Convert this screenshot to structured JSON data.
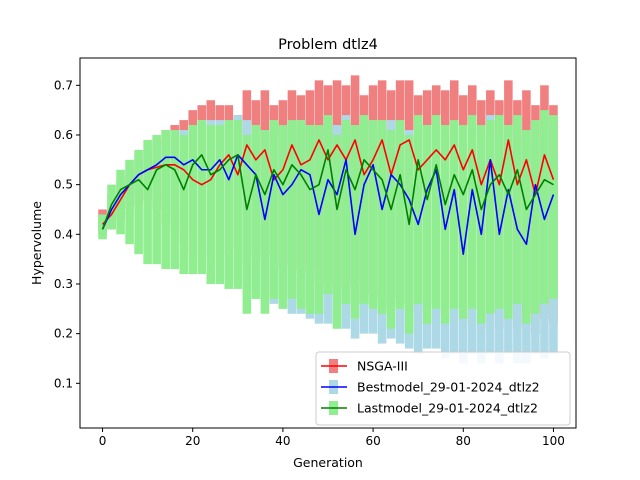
{
  "chart_data": {
    "type": "line",
    "title": "Problem dtlz4",
    "xlabel": "Generation",
    "ylabel": "Hypervolume",
    "xlim": [
      -5,
      105
    ],
    "ylim": [
      0.01,
      0.755
    ],
    "xticks": [
      0,
      20,
      40,
      60,
      80,
      100
    ],
    "yticks": [
      0.1,
      0.2,
      0.3,
      0.4,
      0.5,
      0.6,
      0.7
    ],
    "grid": false,
    "legend": "lower-right",
    "series": [
      {
        "name": "NSGA-III",
        "color": "#ff0000",
        "band_color": "#f08080",
        "x": [
          0,
          2,
          4,
          6,
          8,
          10,
          12,
          14,
          16,
          18,
          20,
          22,
          24,
          26,
          28,
          30,
          32,
          34,
          36,
          38,
          40,
          42,
          44,
          46,
          48,
          50,
          52,
          54,
          56,
          58,
          60,
          62,
          64,
          66,
          68,
          70,
          72,
          74,
          76,
          78,
          80,
          82,
          84,
          86,
          88,
          90,
          92,
          94,
          96,
          98,
          100
        ],
        "mean": [
          0.42,
          0.44,
          0.47,
          0.5,
          0.52,
          0.53,
          0.535,
          0.54,
          0.54,
          0.53,
          0.51,
          0.5,
          0.51,
          0.54,
          0.56,
          0.52,
          0.58,
          0.55,
          0.57,
          0.51,
          0.53,
          0.58,
          0.54,
          0.55,
          0.59,
          0.55,
          0.58,
          0.55,
          0.59,
          0.52,
          0.55,
          0.59,
          0.52,
          0.58,
          0.59,
          0.53,
          0.55,
          0.57,
          0.55,
          0.58,
          0.53,
          0.57,
          0.5,
          0.55,
          0.5,
          0.59,
          0.5,
          0.55,
          0.48,
          0.56,
          0.51
        ],
        "low": [
          0.4,
          0.41,
          0.43,
          0.45,
          0.46,
          0.47,
          0.45,
          0.42,
          0.4,
          0.38,
          0.36,
          0.34,
          0.35,
          0.36,
          0.37,
          0.34,
          0.36,
          0.35,
          0.36,
          0.33,
          0.34,
          0.33,
          0.32,
          0.33,
          0.3,
          0.28,
          0.3,
          0.29,
          0.3,
          0.26,
          0.28,
          0.27,
          0.25,
          0.27,
          0.26,
          0.24,
          0.25,
          0.26,
          0.24,
          0.25,
          0.22,
          0.25,
          0.21,
          0.24,
          0.21,
          0.26,
          0.21,
          0.24,
          0.2,
          0.23,
          0.22
        ],
        "high": [
          0.45,
          0.48,
          0.5,
          0.53,
          0.55,
          0.57,
          0.59,
          0.61,
          0.62,
          0.63,
          0.65,
          0.66,
          0.67,
          0.66,
          0.66,
          0.64,
          0.69,
          0.67,
          0.69,
          0.66,
          0.67,
          0.69,
          0.68,
          0.69,
          0.71,
          0.7,
          0.71,
          0.7,
          0.72,
          0.68,
          0.7,
          0.71,
          0.69,
          0.71,
          0.71,
          0.68,
          0.69,
          0.7,
          0.69,
          0.71,
          0.68,
          0.7,
          0.67,
          0.69,
          0.67,
          0.71,
          0.67,
          0.69,
          0.66,
          0.7,
          0.66
        ]
      },
      {
        "name": "Bestmodel_29-01-2024_dtlz2",
        "color": "#0000ff",
        "band_color": "#add8e6",
        "x": [
          0,
          2,
          4,
          6,
          8,
          10,
          12,
          14,
          16,
          18,
          20,
          22,
          24,
          26,
          28,
          30,
          32,
          34,
          36,
          38,
          40,
          42,
          44,
          46,
          48,
          50,
          52,
          54,
          56,
          58,
          60,
          62,
          64,
          66,
          68,
          70,
          72,
          74,
          76,
          78,
          80,
          82,
          84,
          86,
          88,
          90,
          92,
          94,
          96,
          98,
          100
        ],
        "mean": [
          0.41,
          0.45,
          0.48,
          0.5,
          0.52,
          0.53,
          0.54,
          0.555,
          0.555,
          0.54,
          0.55,
          0.53,
          0.53,
          0.55,
          0.51,
          0.56,
          0.54,
          0.52,
          0.43,
          0.52,
          0.48,
          0.5,
          0.53,
          0.52,
          0.44,
          0.51,
          0.48,
          0.55,
          0.4,
          0.5,
          0.54,
          0.45,
          0.52,
          0.5,
          0.47,
          0.42,
          0.49,
          0.53,
          0.41,
          0.49,
          0.36,
          0.49,
          0.4,
          0.55,
          0.4,
          0.49,
          0.41,
          0.38,
          0.5,
          0.43,
          0.48
        ],
        "low": [
          0.4,
          0.43,
          0.45,
          0.47,
          0.48,
          0.49,
          0.48,
          0.46,
          0.44,
          0.42,
          0.4,
          0.36,
          0.33,
          0.31,
          0.3,
          0.3,
          0.28,
          0.27,
          0.26,
          0.26,
          0.25,
          0.24,
          0.24,
          0.23,
          0.22,
          0.22,
          0.21,
          0.21,
          0.19,
          0.2,
          0.2,
          0.18,
          0.19,
          0.18,
          0.17,
          0.16,
          0.17,
          0.17,
          0.15,
          0.16,
          0.14,
          0.16,
          0.14,
          0.16,
          0.14,
          0.16,
          0.14,
          0.14,
          0.16,
          0.15,
          0.16
        ],
        "high": [
          0.43,
          0.48,
          0.51,
          0.54,
          0.56,
          0.57,
          0.58,
          0.59,
          0.6,
          0.61,
          0.62,
          0.63,
          0.63,
          0.63,
          0.62,
          0.64,
          0.63,
          0.62,
          0.6,
          0.62,
          0.61,
          0.62,
          0.63,
          0.62,
          0.6,
          0.63,
          0.62,
          0.64,
          0.6,
          0.62,
          0.63,
          0.61,
          0.63,
          0.62,
          0.61,
          0.6,
          0.62,
          0.63,
          0.59,
          0.62,
          0.58,
          0.62,
          0.6,
          0.64,
          0.6,
          0.62,
          0.6,
          0.59,
          0.62,
          0.6,
          0.62
        ]
      },
      {
        "name": "Lastmodel_29-01-2024_dtlz2",
        "color": "#008000",
        "band_color": "#90ee90",
        "x": [
          0,
          2,
          4,
          6,
          8,
          10,
          12,
          14,
          16,
          18,
          20,
          22,
          24,
          26,
          28,
          30,
          32,
          34,
          36,
          38,
          40,
          42,
          44,
          46,
          48,
          50,
          52,
          54,
          56,
          58,
          60,
          62,
          64,
          66,
          68,
          70,
          72,
          74,
          76,
          78,
          80,
          82,
          84,
          86,
          88,
          90,
          92,
          94,
          96,
          98,
          100
        ],
        "mean": [
          0.41,
          0.46,
          0.49,
          0.5,
          0.51,
          0.49,
          0.53,
          0.54,
          0.53,
          0.49,
          0.54,
          0.56,
          0.52,
          0.53,
          0.55,
          0.56,
          0.45,
          0.52,
          0.48,
          0.53,
          0.5,
          0.54,
          0.52,
          0.49,
          0.5,
          0.57,
          0.45,
          0.53,
          0.49,
          0.55,
          0.53,
          0.51,
          0.45,
          0.52,
          0.42,
          0.55,
          0.47,
          0.54,
          0.46,
          0.52,
          0.48,
          0.53,
          0.45,
          0.5,
          0.52,
          0.48,
          0.53,
          0.45,
          0.48,
          0.51,
          0.5
        ],
        "low": [
          0.39,
          0.41,
          0.4,
          0.38,
          0.36,
          0.34,
          0.34,
          0.33,
          0.33,
          0.32,
          0.32,
          0.32,
          0.3,
          0.3,
          0.29,
          0.29,
          0.24,
          0.27,
          0.24,
          0.27,
          0.25,
          0.27,
          0.25,
          0.24,
          0.24,
          0.28,
          0.21,
          0.26,
          0.23,
          0.26,
          0.25,
          0.24,
          0.21,
          0.25,
          0.2,
          0.26,
          0.22,
          0.25,
          0.22,
          0.25,
          0.23,
          0.25,
          0.22,
          0.24,
          0.25,
          0.23,
          0.26,
          0.22,
          0.24,
          0.26,
          0.27
        ],
        "high": [
          0.44,
          0.5,
          0.53,
          0.55,
          0.57,
          0.59,
          0.6,
          0.61,
          0.61,
          0.6,
          0.62,
          0.63,
          0.62,
          0.62,
          0.63,
          0.63,
          0.6,
          0.62,
          0.61,
          0.63,
          0.62,
          0.63,
          0.63,
          0.62,
          0.62,
          0.64,
          0.6,
          0.63,
          0.62,
          0.64,
          0.63,
          0.63,
          0.61,
          0.63,
          0.6,
          0.64,
          0.62,
          0.64,
          0.62,
          0.63,
          0.62,
          0.64,
          0.62,
          0.63,
          0.64,
          0.62,
          0.64,
          0.61,
          0.63,
          0.65,
          0.64
        ]
      }
    ]
  }
}
